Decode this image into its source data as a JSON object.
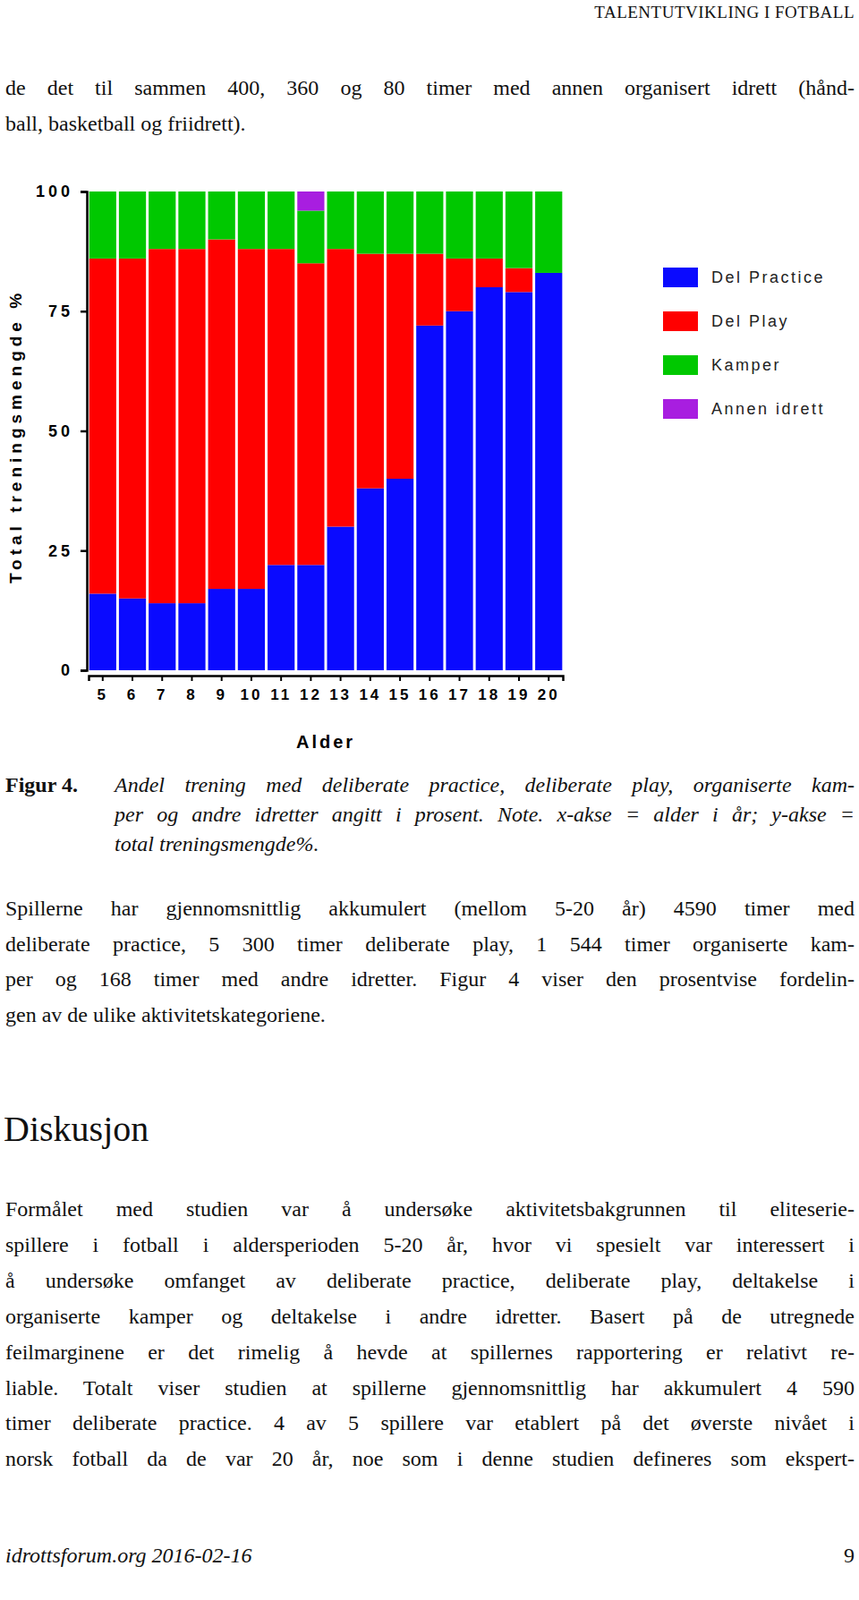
{
  "header": {
    "running_title": "TALENTUTVIKLING I FOTBALL"
  },
  "intro": {
    "lines": [
      "de det til sammen 400, 360 og 80 timer med annen organisert idrett (hånd-",
      "ball, basketball og friidrett)."
    ]
  },
  "chart_data": {
    "type": "bar",
    "stacked": true,
    "legend": "right",
    "xlabel": "Alder",
    "ylabel": "Total treningsmengde %",
    "categories": [
      "5",
      "6",
      "7",
      "8",
      "9",
      "10",
      "11",
      "12",
      "13",
      "14",
      "15",
      "16",
      "17",
      "18",
      "19",
      "20"
    ],
    "ylim": [
      0,
      100
    ],
    "yticks": [
      0,
      25,
      50,
      75,
      100
    ],
    "series": [
      {
        "name": "Del Practice",
        "color": "#0a0aff",
        "values": [
          16,
          15,
          14,
          14,
          17,
          17,
          22,
          22,
          30,
          38,
          40,
          72,
          75,
          80,
          79,
          83
        ]
      },
      {
        "name": "Del Play",
        "color": "#ff0000",
        "values": [
          70,
          71,
          74,
          74,
          73,
          71,
          66,
          63,
          58,
          49,
          47,
          15,
          11,
          6,
          5,
          0
        ]
      },
      {
        "name": "Kamper",
        "color": "#00c800",
        "values": [
          14,
          14,
          12,
          12,
          10,
          12,
          12,
          11,
          12,
          13,
          13,
          13,
          14,
          14,
          16,
          17
        ]
      },
      {
        "name": "Annen idrett",
        "color": "#a81ee0",
        "values": [
          0,
          0,
          0,
          0,
          0,
          0,
          0,
          4,
          0,
          0,
          0,
          0,
          0,
          0,
          0,
          0
        ]
      }
    ]
  },
  "caption": {
    "label": "Figur 4.",
    "lines": [
      "Andel trening med deliberate practice, deliberate play, organiserte kam-",
      "per og andre idretter angitt i prosent. Note. x-akse = alder i år; y-akse =",
      "total treningsmengde%."
    ]
  },
  "paragraph": {
    "lines": [
      "Spillerne har gjennomsnittlig akkumulert (mellom 5-20 år) 4590 timer med",
      "deliberate practice, 5 300 timer deliberate play, 1 544 timer organiserte kam-",
      "per og 168 timer med andre idretter. Figur 4 viser den prosentvise fordelin-",
      "gen av de ulike aktivitetskategoriene."
    ]
  },
  "section": {
    "heading": "Diskusjon",
    "lines": [
      "Formålet med studien var å undersøke aktivitetsbakgrunnen til eliteserie-",
      "spillere i fotball i aldersperioden 5-20 år, hvor vi spesielt var interessert i",
      "å undersøke omfanget av deliberate practice, deliberate play, deltakelse i",
      "organiserte kamper og deltakelse i andre idretter. Basert på de utregnede",
      "feilmarginene er det rimelig å hevde at spillernes rapportering er relativt re-",
      "liable. Totalt viser studien at spillerne gjennomsnittlig har akkumulert 4 590",
      "timer deliberate practice. 4 av 5 spillere var etablert på det øverste nivået i",
      "norsk fotball da de var 20 år, noe som i denne studien defineres som ekspert-"
    ]
  },
  "footer": {
    "source": "idrottsforum.org 2016-02-16",
    "page": 9
  }
}
